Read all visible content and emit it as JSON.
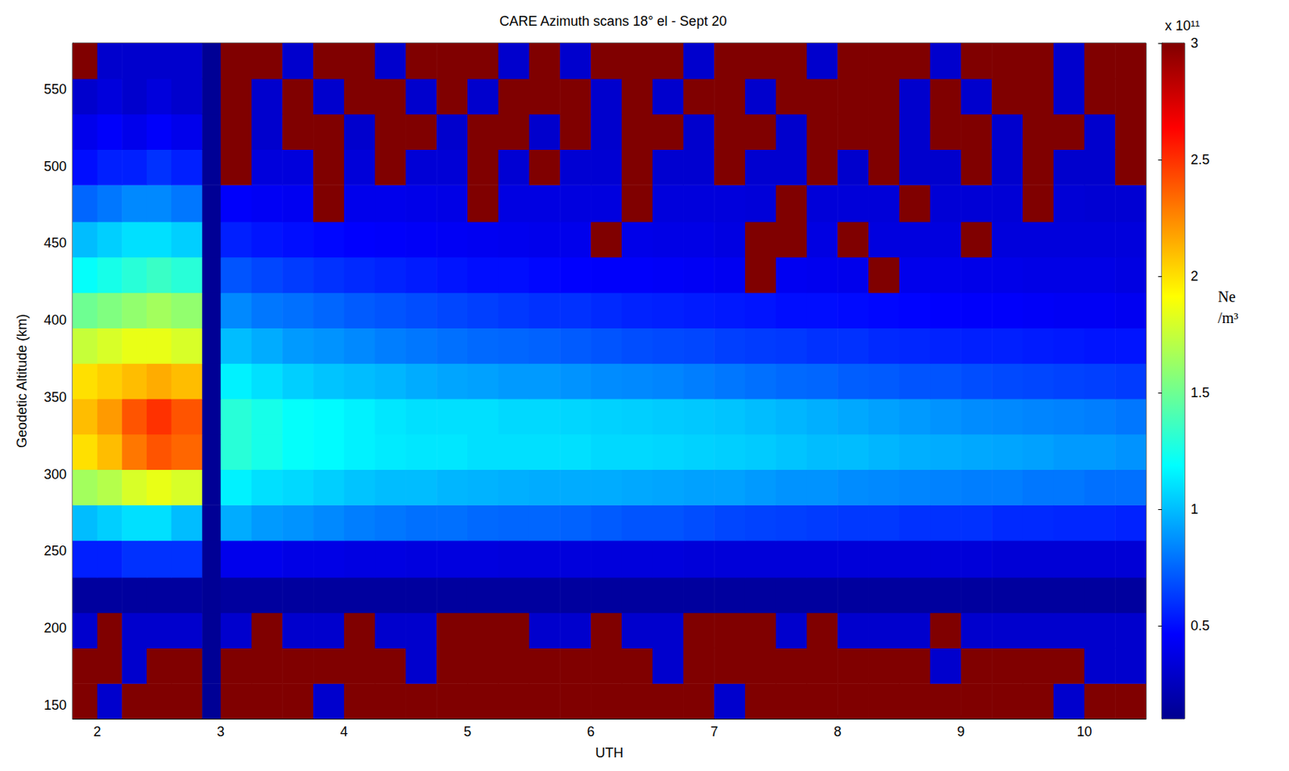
{
  "chart_data": {
    "type": "heatmap",
    "title": "CARE Azimuth scans 18° el - Sept 20",
    "x_label": "UTH",
    "y_label": "Geodetic Altitude (km)",
    "xlim": [
      1.8,
      10.5
    ],
    "xticks": [
      2,
      3,
      4,
      5,
      6,
      7,
      8,
      9,
      10
    ],
    "ylim": [
      141,
      580
    ],
    "yticks": [
      150,
      200,
      250,
      300,
      350,
      400,
      450,
      500,
      550
    ],
    "grid": false,
    "cells": {
      "x_edges": [
        1.8,
        2.0,
        2.2,
        2.4,
        2.6,
        2.85,
        3.0,
        3.25,
        3.5,
        3.75,
        4.0,
        4.25,
        4.5,
        4.75,
        5.0,
        5.25,
        5.5,
        5.75,
        6.0,
        6.25,
        6.5,
        6.75,
        7.0,
        7.25,
        7.5,
        7.75,
        8.0,
        8.25,
        8.5,
        8.75,
        9.0,
        9.25,
        9.5,
        9.75,
        10.0,
        10.25,
        10.5
      ],
      "y_edges": [
        141,
        164,
        187,
        210,
        233,
        257,
        280,
        303,
        326,
        349,
        372,
        395,
        418,
        441,
        464,
        488,
        511,
        534,
        557,
        580
      ],
      "values": [
        [
          3,
          0.3,
          3,
          3,
          3,
          0.12,
          3,
          3,
          3,
          0.3,
          3,
          3,
          3,
          3,
          3,
          3,
          3,
          3,
          3,
          3,
          3,
          3,
          0.3,
          3,
          3,
          3,
          3,
          3,
          3,
          3,
          3,
          3,
          3,
          0.3,
          3,
          3
        ],
        [
          3,
          3,
          0.3,
          3,
          3,
          0.12,
          3,
          3,
          3,
          3,
          3,
          3,
          0.3,
          3,
          3,
          3,
          3,
          3,
          3,
          3,
          0.3,
          3,
          3,
          3,
          3,
          3,
          3,
          3,
          3,
          0.3,
          3,
          3,
          3,
          3,
          0.3,
          0.3
        ],
        [
          0.3,
          3,
          0.3,
          0.3,
          0.3,
          0.12,
          0.3,
          3,
          0.3,
          0.3,
          3,
          0.3,
          0.3,
          3,
          3,
          3,
          0.3,
          0.3,
          3,
          0.3,
          0.3,
          3,
          3,
          3,
          0.3,
          3,
          0.3,
          0.3,
          0.3,
          3,
          0.3,
          0.3,
          0.3,
          0.3,
          0.3,
          0.3
        ],
        [
          0.15,
          0.15,
          0.15,
          0.15,
          0.15,
          0.12,
          0.15,
          0.15,
          0.15,
          0.15,
          0.15,
          0.15,
          0.15,
          0.15,
          0.15,
          0.15,
          0.15,
          0.15,
          0.15,
          0.15,
          0.15,
          0.15,
          0.15,
          0.15,
          0.15,
          0.15,
          0.15,
          0.15,
          0.15,
          0.15,
          0.15,
          0.15,
          0.15,
          0.15,
          0.15,
          0.15
        ],
        [
          0.55,
          0.55,
          0.6,
          0.6,
          0.6,
          0.12,
          0.4,
          0.4,
          0.38,
          0.38,
          0.37,
          0.37,
          0.36,
          0.36,
          0.36,
          0.35,
          0.35,
          0.35,
          0.35,
          0.35,
          0.35,
          0.34,
          0.34,
          0.34,
          0.34,
          0.34,
          0.34,
          0.34,
          0.34,
          0.34,
          0.34,
          0.33,
          0.33,
          0.33,
          0.33,
          0.33
        ],
        [
          1.0,
          1.05,
          1.1,
          1.1,
          1.0,
          0.12,
          0.95,
          0.9,
          0.88,
          0.85,
          0.82,
          0.8,
          0.78,
          0.78,
          0.76,
          0.75,
          0.75,
          0.74,
          0.72,
          0.7,
          0.7,
          0.68,
          0.66,
          0.65,
          0.64,
          0.63,
          0.62,
          0.62,
          0.6,
          0.6,
          0.6,
          0.58,
          0.58,
          0.57,
          0.57,
          0.56
        ],
        [
          1.65,
          1.7,
          1.8,
          1.85,
          1.8,
          0.12,
          1.15,
          1.1,
          1.08,
          1.05,
          1.02,
          1.0,
          1.0,
          0.98,
          0.97,
          0.96,
          0.95,
          0.95,
          0.95,
          0.94,
          0.93,
          0.92,
          0.92,
          0.9,
          0.88,
          0.88,
          0.86,
          0.85,
          0.84,
          0.83,
          0.82,
          0.82,
          0.8,
          0.8,
          0.78,
          0.78
        ],
        [
          2.0,
          2.1,
          2.3,
          2.4,
          2.35,
          0.12,
          1.3,
          1.25,
          1.2,
          1.18,
          1.15,
          1.13,
          1.12,
          1.12,
          1.1,
          1.1,
          1.1,
          1.1,
          1.08,
          1.08,
          1.07,
          1.06,
          1.05,
          1.04,
          1.02,
          1.0,
          1.0,
          0.98,
          0.96,
          0.95,
          0.94,
          0.93,
          0.92,
          0.9,
          0.9,
          0.88
        ],
        [
          2.1,
          2.2,
          2.4,
          2.5,
          2.4,
          0.12,
          1.3,
          1.25,
          1.2,
          1.18,
          1.15,
          1.12,
          1.1,
          1.1,
          1.1,
          1.08,
          1.08,
          1.07,
          1.06,
          1.05,
          1.04,
          1.03,
          1.02,
          1.0,
          0.98,
          0.96,
          0.94,
          0.92,
          0.9,
          0.88,
          0.86,
          0.85,
          0.84,
          0.83,
          0.82,
          0.8
        ],
        [
          2.0,
          2.05,
          2.1,
          2.15,
          2.1,
          0.12,
          1.15,
          1.1,
          1.05,
          1.02,
          1.0,
          0.98,
          0.95,
          0.93,
          0.92,
          0.9,
          0.9,
          0.88,
          0.86,
          0.85,
          0.84,
          0.82,
          0.8,
          0.78,
          0.76,
          0.75,
          0.73,
          0.72,
          0.7,
          0.7,
          0.68,
          0.67,
          0.66,
          0.65,
          0.64,
          0.63
        ],
        [
          1.75,
          1.8,
          1.85,
          1.85,
          1.8,
          0.12,
          1.0,
          0.95,
          0.9,
          0.88,
          0.85,
          0.82,
          0.8,
          0.78,
          0.76,
          0.75,
          0.74,
          0.72,
          0.7,
          0.68,
          0.67,
          0.66,
          0.64,
          0.63,
          0.62,
          0.6,
          0.6,
          0.58,
          0.57,
          0.56,
          0.55,
          0.55,
          0.54,
          0.53,
          0.52,
          0.52
        ],
        [
          1.5,
          1.55,
          1.6,
          1.65,
          1.6,
          0.12,
          0.85,
          0.8,
          0.78,
          0.75,
          0.72,
          0.7,
          0.68,
          0.66,
          0.64,
          0.62,
          0.6,
          0.6,
          0.58,
          0.56,
          0.55,
          0.54,
          0.53,
          0.52,
          0.5,
          0.5,
          0.49,
          0.48,
          0.47,
          0.46,
          0.45,
          0.45,
          0.44,
          0.43,
          0.43,
          0.42
        ],
        [
          1.2,
          1.25,
          1.3,
          1.35,
          1.3,
          0.12,
          0.7,
          0.66,
          0.63,
          0.6,
          0.58,
          0.56,
          0.54,
          0.52,
          0.5,
          0.5,
          0.48,
          0.46,
          0.45,
          0.45,
          0.44,
          0.43,
          0.42,
          3,
          0.42,
          0.41,
          0.4,
          3,
          0.4,
          0.4,
          0.39,
          0.39,
          0.38,
          0.38,
          0.38,
          0.37
        ],
        [
          1.0,
          1.05,
          1.1,
          1.1,
          1.05,
          0.12,
          0.55,
          0.52,
          0.5,
          0.48,
          0.46,
          0.45,
          0.44,
          0.43,
          0.42,
          0.41,
          0.4,
          0.4,
          3,
          0.39,
          0.38,
          0.38,
          0.37,
          3,
          3,
          0.37,
          3,
          0.36,
          0.36,
          0.36,
          3,
          0.35,
          0.35,
          0.35,
          0.35,
          0.35
        ],
        [
          0.75,
          0.8,
          0.85,
          0.85,
          0.8,
          0.12,
          0.45,
          0.43,
          0.42,
          3,
          0.4,
          0.4,
          0.39,
          0.38,
          3,
          0.37,
          0.37,
          0.36,
          0.36,
          3,
          0.35,
          0.35,
          0.35,
          0.34,
          3,
          0.34,
          0.34,
          0.34,
          3,
          0.33,
          0.33,
          0.33,
          3,
          0.33,
          0.32,
          0.32
        ],
        [
          0.5,
          0.55,
          0.55,
          0.6,
          0.55,
          0.12,
          3,
          0.35,
          0.35,
          3,
          0.34,
          3,
          0.33,
          0.33,
          3,
          0.32,
          3,
          0.32,
          0.32,
          3,
          0.31,
          0.31,
          3,
          0.31,
          0.31,
          3,
          0.3,
          3,
          0.3,
          0.3,
          3,
          0.3,
          3,
          0.3,
          0.3,
          3
        ],
        [
          0.4,
          0.45,
          0.4,
          0.45,
          0.4,
          0.12,
          3,
          0.3,
          3,
          3,
          0.3,
          3,
          3,
          0.3,
          3,
          3,
          0.3,
          3,
          0.3,
          3,
          3,
          0.3,
          3,
          3,
          0.3,
          3,
          3,
          3,
          0.3,
          3,
          3,
          0.3,
          3,
          3,
          0.3,
          3
        ],
        [
          0.3,
          0.35,
          0.3,
          0.35,
          0.3,
          0.12,
          3,
          0.3,
          3,
          0.3,
          3,
          3,
          0.3,
          3,
          0.3,
          3,
          3,
          3,
          0.3,
          3,
          0.3,
          3,
          3,
          0.3,
          3,
          3,
          3,
          3,
          0.3,
          3,
          0.3,
          3,
          3,
          0.3,
          3,
          3
        ],
        [
          3,
          0.3,
          0.3,
          0.3,
          0.3,
          0.12,
          3,
          3,
          0.3,
          3,
          3,
          0.3,
          3,
          3,
          3,
          0.3,
          3,
          0.3,
          3,
          3,
          3,
          0.3,
          3,
          3,
          3,
          0.3,
          3,
          3,
          3,
          0.3,
          3,
          3,
          3,
          0.3,
          3,
          3
        ]
      ]
    },
    "colorbar": {
      "range": [
        0.1,
        3
      ],
      "ticks": [
        0.5,
        1,
        1.5,
        2,
        2.5,
        3
      ],
      "label": "Ne /m³",
      "scale": "x 10¹¹"
    }
  }
}
